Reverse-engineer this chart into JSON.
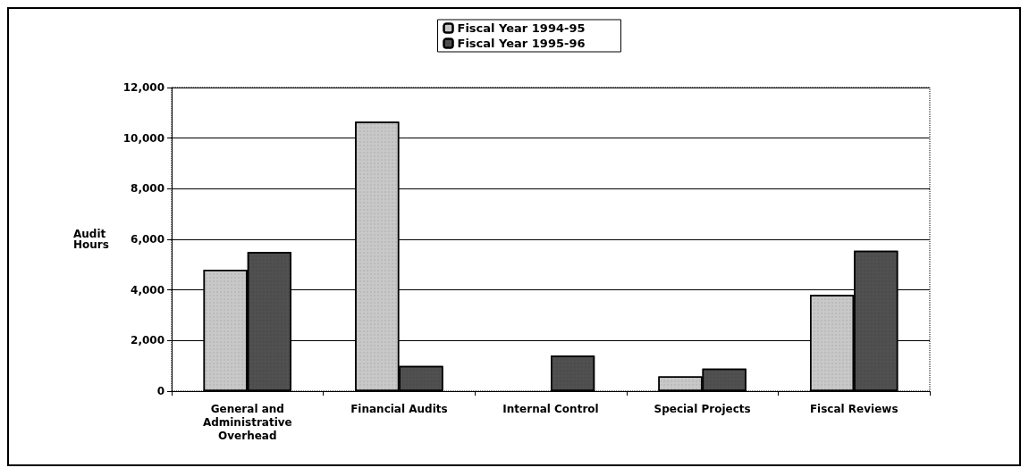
{
  "chart_data": {
    "type": "bar",
    "ylabel": "Audit Hours",
    "categories": [
      "General and Administrative Overhead",
      "Financial Audits",
      "Internal Control",
      "Special Projects",
      "Fiscal Reviews"
    ],
    "series": [
      {
        "name": "Fiscal Year 1994-95",
        "color": "#c8c8c8",
        "values": [
          4800,
          10650,
          null,
          580,
          3800
        ]
      },
      {
        "name": "Fiscal Year 1995-96",
        "color": "#505050",
        "values": [
          5500,
          1000,
          1400,
          890,
          5550
        ]
      }
    ],
    "ylim": [
      0,
      12000
    ],
    "yticks": [
      0,
      {
        "value": 2000,
        "label": "2,000"
      },
      {
        "value": 4000,
        "label": "4,000"
      },
      {
        "value": 6000,
        "label": "6,000"
      },
      {
        "value": 8000,
        "label": "8,000"
      },
      {
        "value": 10000,
        "label": "10,000"
      },
      {
        "value": 12000,
        "label": "12,000"
      }
    ],
    "grid": "y",
    "legend": "top"
  }
}
